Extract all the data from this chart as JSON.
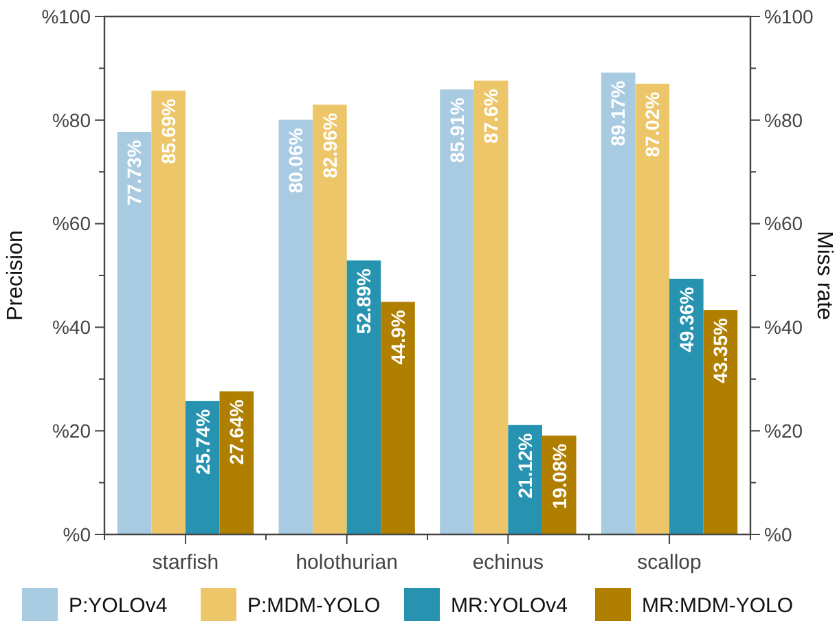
{
  "chart_data": {
    "type": "bar",
    "categories": [
      "starfish",
      "holothurian",
      "echinus",
      "scallop"
    ],
    "series": [
      {
        "name": "P:YOLOv4",
        "color": "#a8cbe2",
        "values": [
          77.73,
          80.06,
          85.91,
          89.17
        ],
        "value_labels": [
          "77.73%",
          "80.06%",
          "85.91%",
          "89.17%"
        ]
      },
      {
        "name": "P:MDM-YOLO",
        "color": "#ecc669",
        "values": [
          85.69,
          82.96,
          87.6,
          87.02
        ],
        "value_labels": [
          "85.69%",
          "82.96%",
          "87.6%",
          "87.02%"
        ]
      },
      {
        "name": "MR:YOLOv4",
        "color": "#2793b0",
        "values": [
          25.74,
          52.89,
          21.12,
          49.36
        ],
        "value_labels": [
          "25.74%",
          "52.89%",
          "21.12%",
          "49.36%"
        ]
      },
      {
        "name": "MR:MDM-YOLO",
        "color": "#b07f00",
        "values": [
          27.64,
          44.9,
          19.08,
          43.35
        ],
        "value_labels": [
          "27.64%",
          "44.9%",
          "19.08%",
          "43.35%"
        ]
      }
    ],
    "ylabel": "Precision",
    "y2label": "Miss rate",
    "ylim": [
      0,
      100
    ],
    "yticks": [
      {
        "value": 0,
        "label": "%0"
      },
      {
        "value": 10,
        "label": null
      },
      {
        "value": 20,
        "label": "%20"
      },
      {
        "value": 30,
        "label": null
      },
      {
        "value": 40,
        "label": "%40"
      },
      {
        "value": 50,
        "label": null
      },
      {
        "value": 60,
        "label": "%60"
      },
      {
        "value": 70,
        "label": null
      },
      {
        "value": 80,
        "label": "%80"
      },
      {
        "value": 90,
        "label": null
      },
      {
        "value": 100,
        "label": "%100"
      }
    ],
    "y2lim": [
      0,
      100
    ],
    "y2ticks": [
      {
        "value": 0,
        "label": "%0"
      },
      {
        "value": 10,
        "label": null
      },
      {
        "value": 20,
        "label": "%20"
      },
      {
        "value": 30,
        "label": null
      },
      {
        "value": 40,
        "label": "%40"
      },
      {
        "value": 50,
        "label": null
      },
      {
        "value": 60,
        "label": "%60"
      },
      {
        "value": 70,
        "label": null
      },
      {
        "value": 80,
        "label": "%80"
      },
      {
        "value": 90,
        "label": null
      },
      {
        "value": 100,
        "label": "%100"
      }
    ],
    "legend": "bottom"
  }
}
